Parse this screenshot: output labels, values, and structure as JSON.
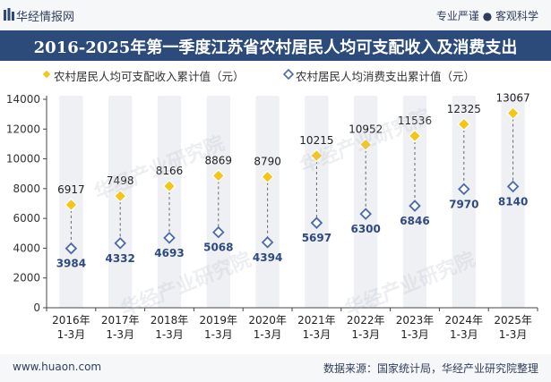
{
  "header": {
    "brand": "华经情报网",
    "tagline": "专业严谨 ● 客观科学",
    "title": "2016-2025年第一季度江苏省农村居民人均可支配收入及消费支出"
  },
  "watermark": "华经产业研究院",
  "footer": {
    "left": "www.huaon.com",
    "right": "数据来源：国家统计局，华经产业研究院整理"
  },
  "colors": {
    "income_marker": "#f5c518",
    "consumption_marker": "#4a6aa8",
    "column_bg": "#eef0f4",
    "title_bg": "#2c4a7a"
  },
  "chart_data": {
    "type": "scatter",
    "categories": [
      "2016年\n1-3月",
      "2017年\n1-3月",
      "2018年\n1-3月",
      "2019年\n1-3月",
      "2020年\n1-3月",
      "2021年\n1-3月",
      "2022年\n1-3月",
      "2023年\n1-3月",
      "2024年\n1-3月",
      "2025年\n1-3月"
    ],
    "series": [
      {
        "name": "农村居民人均可支配收入累计值（元）",
        "values": [
          6917,
          7498,
          8166,
          8869,
          8790,
          10215,
          10952,
          11536,
          12325,
          13067
        ]
      },
      {
        "name": "农村居民人均消费支出累计值（元）",
        "values": [
          3984,
          4332,
          4693,
          5068,
          4394,
          5697,
          6300,
          6846,
          7970,
          8140
        ]
      }
    ],
    "ylim": [
      0,
      14000
    ],
    "yticks": [
      0,
      2000,
      4000,
      6000,
      8000,
      10000,
      12000,
      14000
    ],
    "grid": false,
    "legend": "top-left"
  }
}
